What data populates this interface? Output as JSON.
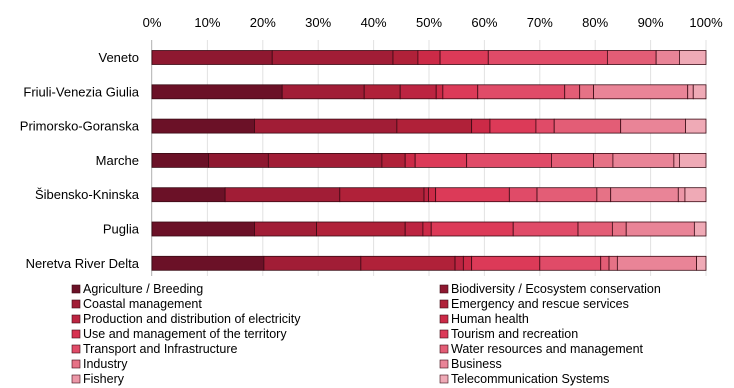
{
  "chart_data": {
    "type": "bar",
    "orientation": "horizontal",
    "stacked": true,
    "percent": true,
    "xlim": [
      0,
      100
    ],
    "x_ticks": [
      "0%",
      "10%",
      "20%",
      "30%",
      "40%",
      "50%",
      "60%",
      "70%",
      "80%",
      "90%",
      "100%"
    ],
    "tick_position": "top",
    "legend_position": "bottom",
    "categories": [
      "Veneto",
      "Friuli-Venezia Giulia",
      "Primorsko-Goranska",
      "Marche",
      "Šibensko-Kninska",
      "Puglia",
      "Neretva River Delta"
    ],
    "series": [
      {
        "name": "Agriculture / Breeding",
        "color": "#6b1127",
        "values": [
          0,
          23.5,
          18.5,
          10.2,
          13.2,
          18.5,
          20.2
        ]
      },
      {
        "name": "Biodiversity / Ecosystem conservation",
        "color": "#8e1830",
        "values": [
          21.7,
          0,
          0,
          10.8,
          0,
          0,
          0
        ]
      },
      {
        "name": "Coastal management",
        "color": "#a11d36",
        "values": [
          21.8,
          14.8,
          25.7,
          20.5,
          20.7,
          11.2,
          17.5
        ]
      },
      {
        "name": "Emergency and rescue services",
        "color": "#b02139",
        "values": [
          4.5,
          6.5,
          13.5,
          4.2,
          15.2,
          16.0,
          17.0
        ]
      },
      {
        "name": "Production and distribution of electricity",
        "color": "#bc2441",
        "values": [
          0,
          6.5,
          0,
          0,
          0.8,
          3.2,
          1.5
        ]
      },
      {
        "name": "Human health",
        "color": "#cc2a47",
        "values": [
          4.0,
          1.2,
          3.3,
          1.8,
          1.3,
          1.5,
          1.5
        ]
      },
      {
        "name": "Use and management of the territory",
        "color": "#d73150",
        "values": [
          0,
          0,
          0,
          0,
          0,
          0,
          0
        ]
      },
      {
        "name": "Tourism and recreation",
        "color": "#dc3a58",
        "values": [
          8.7,
          6.3,
          8.3,
          9.3,
          13.3,
          14.8,
          12.3
        ]
      },
      {
        "name": "Transport and Infrastructure",
        "color": "#e04b68",
        "values": [
          21.5,
          15.7,
          3.3,
          15.3,
          5.0,
          11.7,
          11.0
        ]
      },
      {
        "name": "Water resources and management",
        "color": "#e35d76",
        "values": [
          8.8,
          2.7,
          12.0,
          7.6,
          10.8,
          6.2,
          1.5
        ]
      },
      {
        "name": "Industry",
        "color": "#e67286",
        "values": [
          0,
          2.5,
          0,
          3.5,
          2.5,
          2.5,
          1.5
        ]
      },
      {
        "name": "Business",
        "color": "#e98497",
        "values": [
          4.2,
          17.0,
          11.7,
          11.0,
          12.2,
          12.3,
          14.3
        ]
      },
      {
        "name": "Fishery",
        "color": "#ec97a7",
        "values": [
          0,
          1.0,
          0,
          1.0,
          1.2,
          0,
          0
        ]
      },
      {
        "name": "Telecommunication Systems",
        "color": "#efaab6",
        "values": [
          4.8,
          2.3,
          3.7,
          4.8,
          3.8,
          2.1,
          1.7
        ]
      }
    ]
  }
}
